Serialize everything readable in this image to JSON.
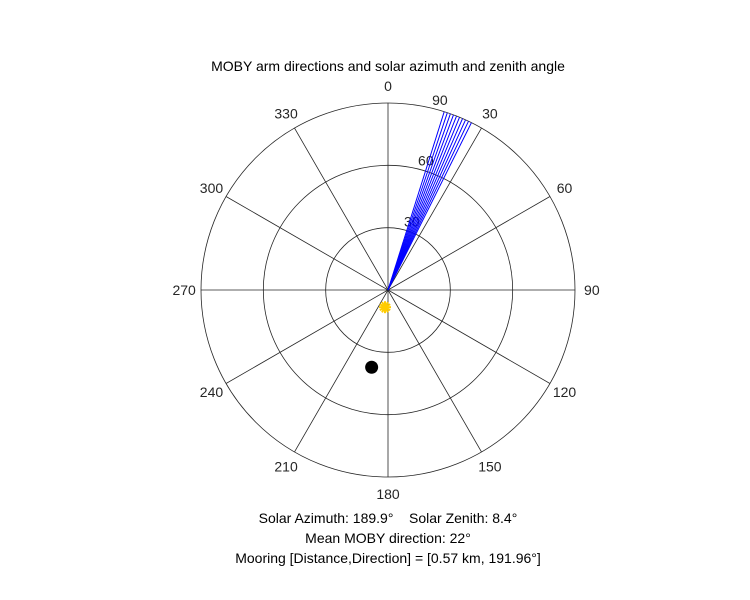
{
  "chart_data": {
    "type": "polar",
    "title": "MOBY arm directions and solar azimuth and zenith angle",
    "theta_zero_location": "top",
    "theta_direction": "clockwise",
    "theta_ticks": [
      0,
      30,
      60,
      90,
      120,
      150,
      180,
      210,
      240,
      270,
      300,
      330
    ],
    "radial_ticks": [
      30,
      60,
      90
    ],
    "radial_max": 90,
    "grid": true,
    "series": [
      {
        "kind": "arm-lines",
        "color": "#0000ff",
        "directions_deg": [
          17.5,
          18.5,
          19.5,
          20.5,
          21.5,
          22.5,
          23.5,
          24.5,
          25.5,
          26.5
        ],
        "radius": 90
      },
      {
        "kind": "sun-marker",
        "color": "#ffcc00",
        "azimuth_deg": 189.9,
        "zenith_deg": 8.4
      },
      {
        "kind": "mooring-marker",
        "color": "#000000",
        "direction_deg": 191.96,
        "radius": 38
      }
    ],
    "annotations": [
      "Solar Azimuth: 189.9°    Solar Zenith: 8.4°",
      "Mean MOBY direction: 22°",
      "Mooring [Distance,Direction] = [0.57 km, 191.96°]"
    ]
  }
}
